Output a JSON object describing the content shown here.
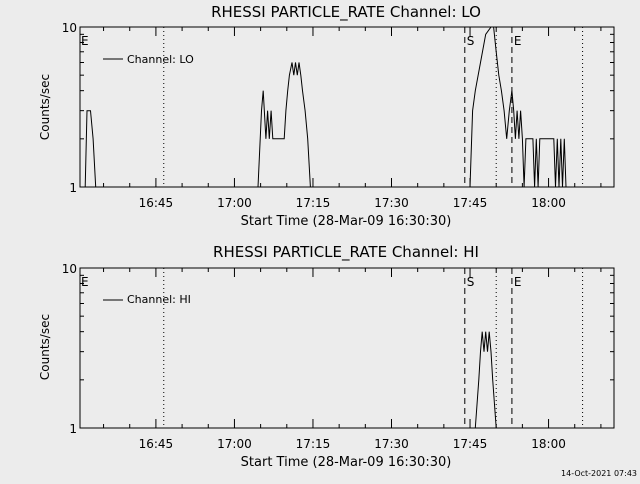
{
  "timestamp": "14-Oct-2021 07:43",
  "chart_data": [
    {
      "type": "line",
      "title": "RHESSI PARTICLE_RATE Channel: LO",
      "xlabel": "Start Time (28-Mar-09 16:30:30)",
      "ylabel": "Counts/sec",
      "yscale": "log",
      "ylim": [
        1,
        10
      ],
      "xlim": [
        "16:30:30",
        "18:12:30"
      ],
      "y_ticks": [
        "1",
        "10"
      ],
      "x_ticks": [
        "16:45",
        "17:00",
        "17:15",
        "17:30",
        "17:45",
        "18:00"
      ],
      "legend": {
        "position": "top-left",
        "entries": [
          "Channel: LO"
        ]
      },
      "markers": [
        {
          "label": "E",
          "time": "16:30:30",
          "style": "none"
        },
        {
          "label": "",
          "time": "16:46:30",
          "style": "dotted"
        },
        {
          "label": "S",
          "time": "17:44:00",
          "style": "dashed"
        },
        {
          "label": "",
          "time": "17:50:00",
          "style": "dotted"
        },
        {
          "label": "E",
          "time": "17:53:00",
          "style": "dashed"
        },
        {
          "label": "",
          "time": "18:06:30",
          "style": "dotted"
        }
      ],
      "series": [
        {
          "name": "Channel: LO",
          "segments": [
            [
              [
                "16:31:30",
                1
              ],
              [
                "16:31:50",
                3
              ],
              [
                "16:32:30",
                3
              ],
              [
                "16:33:00",
                2
              ],
              [
                "16:33:30",
                1
              ]
            ],
            [
              [
                "17:04:30",
                1
              ],
              [
                "17:05:10",
                3
              ],
              [
                "17:05:30",
                4
              ],
              [
                "17:06:00",
                2
              ],
              [
                "17:06:20",
                3
              ],
              [
                "17:06:40",
                2
              ],
              [
                "17:07:00",
                3
              ],
              [
                "17:07:20",
                2
              ],
              [
                "17:09:30",
                2
              ],
              [
                "17:09:50",
                3
              ],
              [
                "17:10:10",
                4
              ],
              [
                "17:10:30",
                5
              ],
              [
                "17:11:00",
                6
              ],
              [
                "17:11:20",
                5
              ],
              [
                "17:11:40",
                6
              ],
              [
                "17:12:00",
                5
              ],
              [
                "17:12:20",
                6
              ],
              [
                "17:12:40",
                5
              ],
              [
                "17:13:00",
                4
              ],
              [
                "17:13:30",
                3
              ],
              [
                "17:14:00",
                2
              ],
              [
                "17:14:30",
                1
              ]
            ],
            [
              [
                "17:45:00",
                1
              ],
              [
                "17:45:30",
                3
              ],
              [
                "17:46:00",
                4
              ],
              [
                "17:47:00",
                6
              ],
              [
                "17:48:00",
                9
              ],
              [
                "17:49:00",
                10
              ],
              [
                "17:49:30",
                10
              ],
              [
                "17:50:00",
                7
              ],
              [
                "17:50:30",
                5
              ],
              [
                "17:51:00",
                4
              ],
              [
                "17:51:30",
                3
              ],
              [
                "17:52:00",
                2
              ],
              [
                "17:52:30",
                3
              ],
              [
                "17:53:00",
                4
              ],
              [
                "17:53:20",
                3
              ],
              [
                "17:53:40",
                2
              ],
              [
                "17:54:00",
                3
              ],
              [
                "17:54:20",
                2
              ],
              [
                "17:54:40",
                3
              ],
              [
                "17:55:00",
                2
              ],
              [
                "17:55:20",
                1
              ],
              [
                "17:55:40",
                2
              ],
              [
                "17:57:00",
                2
              ],
              [
                "17:57:20",
                1
              ],
              [
                "17:57:40",
                2
              ],
              [
                "17:58:00",
                1
              ],
              [
                "17:58:20",
                2
              ],
              [
                "18:01:00",
                2
              ],
              [
                "18:01:20",
                1
              ],
              [
                "18:01:40",
                2
              ],
              [
                "18:02:00",
                1
              ],
              [
                "18:02:20",
                2
              ],
              [
                "18:02:40",
                1
              ],
              [
                "18:03:00",
                2
              ],
              [
                "18:03:20",
                1
              ]
            ]
          ]
        }
      ]
    },
    {
      "type": "line",
      "title": "RHESSI PARTICLE_RATE Channel: HI",
      "xlabel": "Start Time (28-Mar-09 16:30:30)",
      "ylabel": "Counts/sec",
      "yscale": "log",
      "ylim": [
        1,
        10
      ],
      "xlim": [
        "16:30:30",
        "18:12:30"
      ],
      "y_ticks": [
        "1",
        "10"
      ],
      "x_ticks": [
        "16:45",
        "17:00",
        "17:15",
        "17:30",
        "17:45",
        "18:00"
      ],
      "legend": {
        "position": "top-left",
        "entries": [
          "Channel: HI"
        ]
      },
      "markers": [
        {
          "label": "E",
          "time": "16:30:30",
          "style": "none"
        },
        {
          "label": "",
          "time": "16:46:30",
          "style": "dotted"
        },
        {
          "label": "S",
          "time": "17:44:00",
          "style": "dashed"
        },
        {
          "label": "",
          "time": "17:50:00",
          "style": "dotted"
        },
        {
          "label": "E",
          "time": "17:53:00",
          "style": "dashed"
        },
        {
          "label": "",
          "time": "18:06:30",
          "style": "dotted"
        }
      ],
      "series": [
        {
          "name": "Channel: HI",
          "segments": [
            [
              [
                "17:46:00",
                1
              ],
              [
                "17:46:40",
                2
              ],
              [
                "17:47:00",
                3
              ],
              [
                "17:47:20",
                4
              ],
              [
                "17:47:40",
                3
              ],
              [
                "17:48:00",
                4
              ],
              [
                "17:48:20",
                3
              ],
              [
                "17:48:40",
                4
              ],
              [
                "17:49:00",
                3
              ],
              [
                "17:49:20",
                2
              ],
              [
                "17:50:00",
                1
              ]
            ]
          ]
        }
      ]
    }
  ]
}
